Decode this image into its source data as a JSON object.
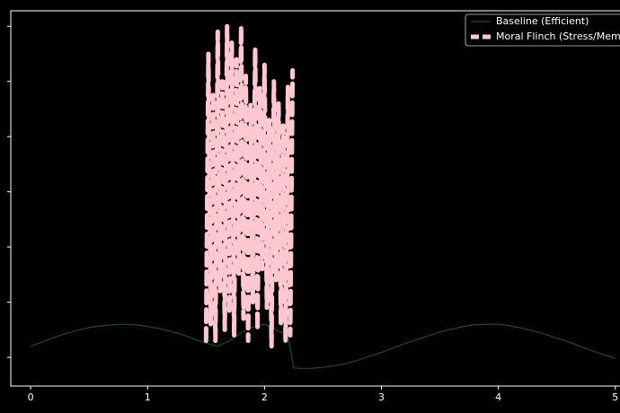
{
  "chart_data": {
    "type": "line",
    "xlim": [
      -0.17,
      5.04
    ],
    "xticks": [
      0,
      1,
      2,
      3,
      4,
      5
    ],
    "ylim": [
      -0.52,
      6.28
    ],
    "yticks": [
      0,
      1,
      2,
      3,
      4,
      5,
      6
    ],
    "legend": "upper right",
    "series": [
      {
        "name": "Baseline (Efficient)",
        "color": "#1e4a26",
        "width": 1.2,
        "dashed": false,
        "x": [
          0,
          0.1,
          0.2,
          0.3,
          0.4,
          0.5,
          0.6,
          0.7,
          0.8,
          0.9,
          1.0,
          1.1,
          1.2,
          1.3,
          1.4,
          1.5,
          1.6,
          1.7,
          1.8,
          1.9,
          2.0,
          2.1,
          2.2,
          2.25,
          2.3,
          2.4,
          2.5,
          2.6,
          2.7,
          2.8,
          2.9,
          3.0,
          3.1,
          3.2,
          3.3,
          3.4,
          3.5,
          3.6,
          3.7,
          3.8,
          3.9,
          4.0,
          4.1,
          4.2,
          4.3,
          4.4,
          4.5,
          4.6,
          4.7,
          4.8,
          4.9,
          5.0
        ],
        "values": [
          0.2,
          0.28,
          0.36,
          0.43,
          0.49,
          0.54,
          0.57,
          0.59,
          0.6,
          0.59,
          0.56,
          0.52,
          0.47,
          0.41,
          0.33,
          0.26,
          0.2,
          0.3,
          0.45,
          0.55,
          0.6,
          0.5,
          0.4,
          -0.19,
          -0.2,
          -0.2,
          -0.18,
          -0.15,
          -0.11,
          -0.05,
          0.02,
          0.09,
          0.17,
          0.25,
          0.32,
          0.39,
          0.46,
          0.51,
          0.56,
          0.59,
          0.6,
          0.6,
          0.57,
          0.53,
          0.48,
          0.42,
          0.35,
          0.28,
          0.2,
          0.12,
          0.05,
          -0.02
        ]
      },
      {
        "name": "Moral Flinch (Stress/Memo",
        "color": "#ffc8d0",
        "width": 5,
        "dashed": true,
        "x": [
          1.5,
          1.52,
          1.54,
          1.56,
          1.58,
          1.6,
          1.62,
          1.64,
          1.66,
          1.68,
          1.7,
          1.72,
          1.74,
          1.76,
          1.78,
          1.8,
          1.82,
          1.84,
          1.86,
          1.88,
          1.9,
          1.92,
          1.94,
          1.96,
          1.98,
          2.0,
          2.02,
          2.04,
          2.06,
          2.08,
          2.1,
          2.12,
          2.14,
          2.16,
          2.18,
          2.2,
          2.22,
          2.24
        ],
        "values": [
          0.3,
          5.5,
          0.6,
          4.8,
          0.3,
          5.9,
          1.2,
          5.0,
          0.5,
          6.0,
          0.8,
          5.7,
          0.4,
          5.4,
          1.5,
          6.0,
          0.7,
          5.1,
          0.3,
          4.6,
          1.0,
          5.6,
          0.5,
          4.9,
          1.6,
          5.3,
          0.9,
          4.3,
          0.2,
          5.0,
          1.4,
          4.6,
          0.6,
          4.2,
          0.3,
          4.9,
          0.4,
          5.2
        ]
      }
    ]
  }
}
